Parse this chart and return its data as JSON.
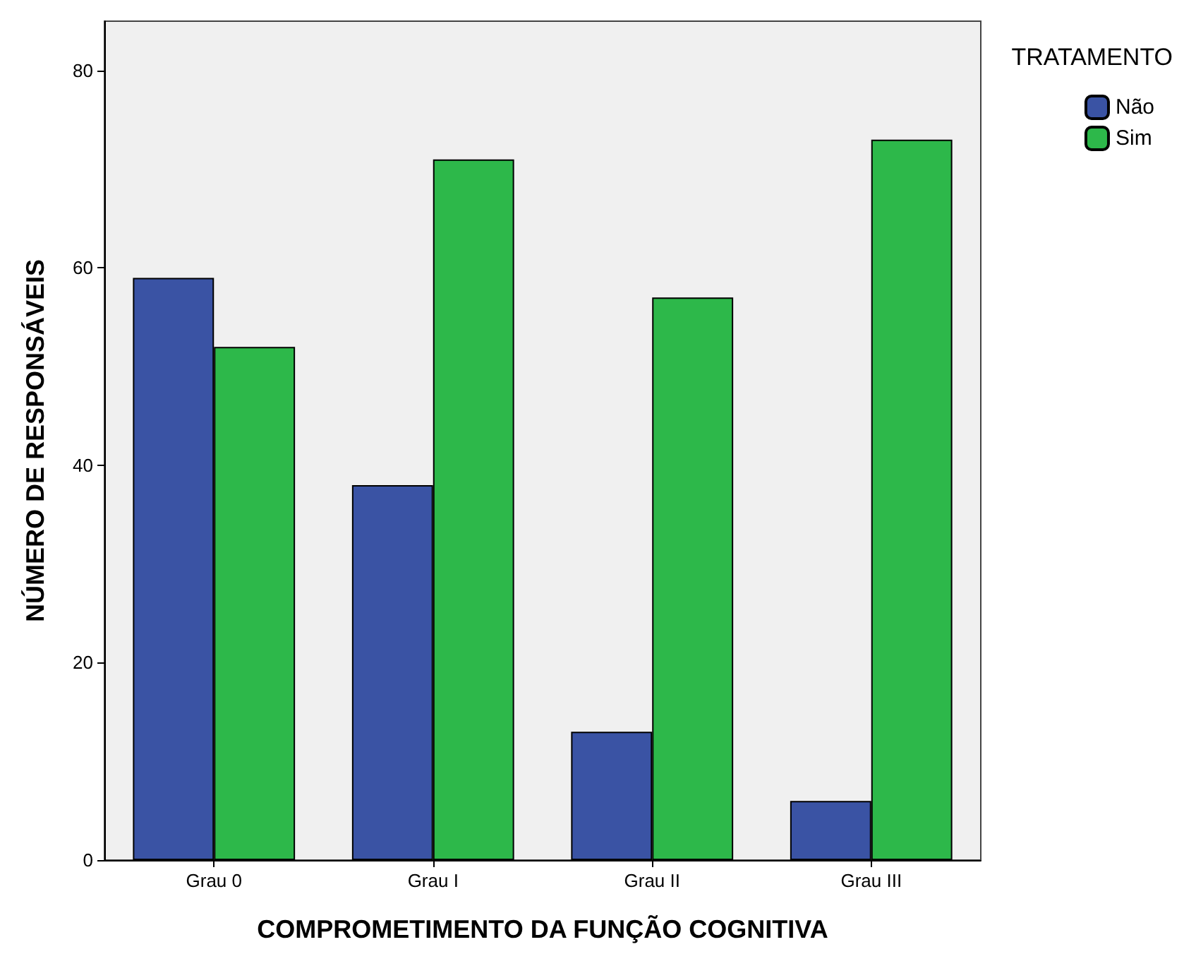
{
  "chart_data": {
    "type": "bar",
    "xlabel": "COMPROMETIMENTO DA FUNÇÃO COGNITIVA",
    "ylabel": "NÚMERO DE RESPONSÁVEIS",
    "legend_title": "TRATAMENTO",
    "categories": [
      "Grau 0",
      "Grau I",
      "Grau II",
      "Grau III"
    ],
    "series": [
      {
        "name": "Não",
        "color": "#3a53a4",
        "values": [
          59,
          38,
          13,
          6
        ]
      },
      {
        "name": "Sim",
        "color": "#2db84a",
        "values": [
          52,
          71,
          57,
          73
        ]
      }
    ],
    "ylim": [
      0,
      85
    ],
    "yticks": [
      0,
      20,
      40,
      60,
      80
    ],
    "grid": false,
    "legend": "top right"
  }
}
